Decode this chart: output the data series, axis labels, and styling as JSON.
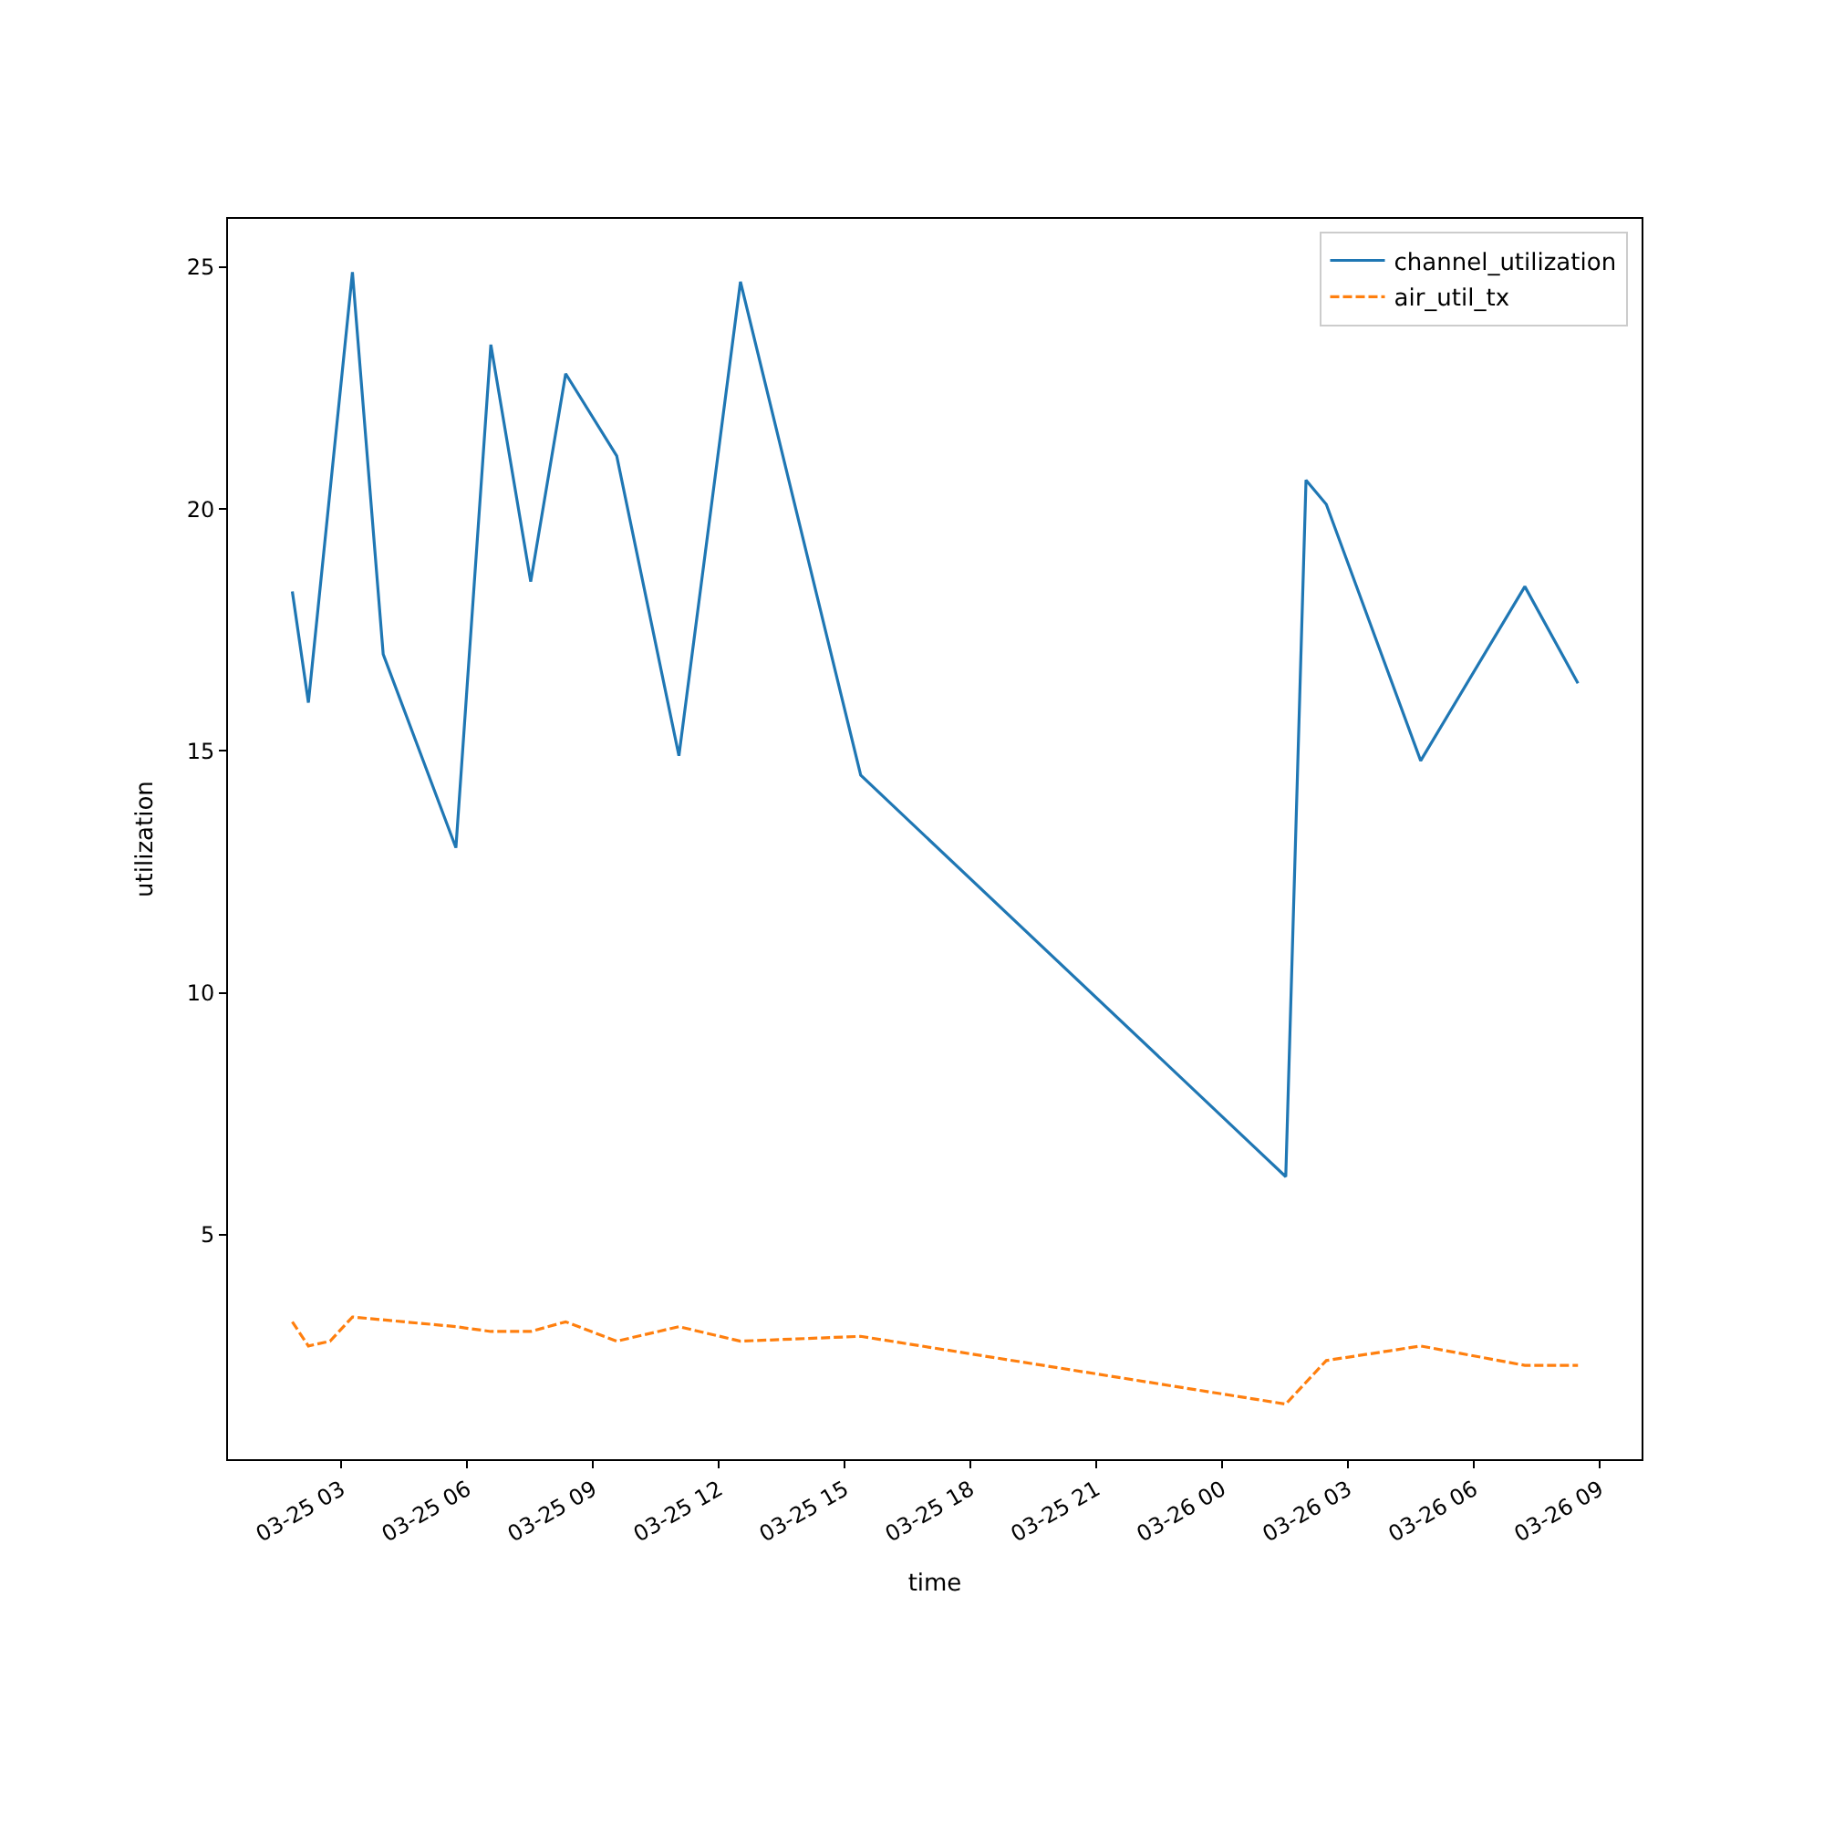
{
  "chart_data": {
    "type": "line",
    "xlabel": "time",
    "ylabel": "utilization",
    "xlim": [
      "--03-25T00:18",
      "--03-26T10:00"
    ],
    "xticks": [
      {
        "value": "--03-25T03:00",
        "label": "03-25 03"
      },
      {
        "value": "--03-25T06:00",
        "label": "03-25 06"
      },
      {
        "value": "--03-25T09:00",
        "label": "03-25 09"
      },
      {
        "value": "--03-25T12:00",
        "label": "03-25 12"
      },
      {
        "value": "--03-25T15:00",
        "label": "03-25 15"
      },
      {
        "value": "--03-25T18:00",
        "label": "03-25 18"
      },
      {
        "value": "--03-25T21:00",
        "label": "03-25 21"
      },
      {
        "value": "--03-26T00:00",
        "label": "03-26 00"
      },
      {
        "value": "--03-26T03:00",
        "label": "03-26 03"
      },
      {
        "value": "--03-26T06:00",
        "label": "03-26 06"
      },
      {
        "value": "--03-26T09:00",
        "label": "03-26 09"
      }
    ],
    "ylim": [
      0.36,
      26.0
    ],
    "yticks": [
      5,
      10,
      15,
      20,
      25
    ],
    "legend": "top right",
    "marker": "none",
    "series": [
      {
        "name": "channel_utilization",
        "color": "#1f77b4",
        "line_style": "solid",
        "x": [
          "--03-25T01:50",
          "--03-25T02:13",
          "--03-25T03:16",
          "--03-25T04:00",
          "--03-25T05:44",
          "--03-25T06:34",
          "--03-25T07:31",
          "--03-25T08:21",
          "--03-25T09:34",
          "--03-25T11:03",
          "--03-25T12:31",
          "--03-25T15:23",
          "--03-26T01:31",
          "--03-26T02:00",
          "--03-26T02:29",
          "--03-26T04:44",
          "--03-26T07:13",
          "--03-26T08:29"
        ],
        "values": [
          18.3,
          16.0,
          24.9,
          17.0,
          13.0,
          23.4,
          18.5,
          22.8,
          21.1,
          14.9,
          24.7,
          14.5,
          6.2,
          20.6,
          20.1,
          14.8,
          18.4,
          16.4
        ]
      },
      {
        "name": "air_util_tx",
        "color": "#ff7f0e",
        "line_style": "dashed",
        "x": [
          "--03-25T01:50",
          "--03-25T02:13",
          "--03-25T02:44",
          "--03-25T03:16",
          "--03-25T05:44",
          "--03-25T06:34",
          "--03-25T07:31",
          "--03-25T08:21",
          "--03-25T09:34",
          "--03-25T11:03",
          "--03-25T12:31",
          "--03-25T15:23",
          "--03-26T01:31",
          "--03-26T02:29",
          "--03-26T04:44",
          "--03-26T07:13",
          "--03-26T08:29"
        ],
        "values": [
          3.2,
          2.7,
          2.8,
          3.3,
          3.1,
          3.0,
          3.0,
          3.2,
          2.8,
          3.1,
          2.8,
          2.9,
          1.5,
          2.4,
          2.7,
          2.3,
          2.3
        ]
      }
    ]
  }
}
